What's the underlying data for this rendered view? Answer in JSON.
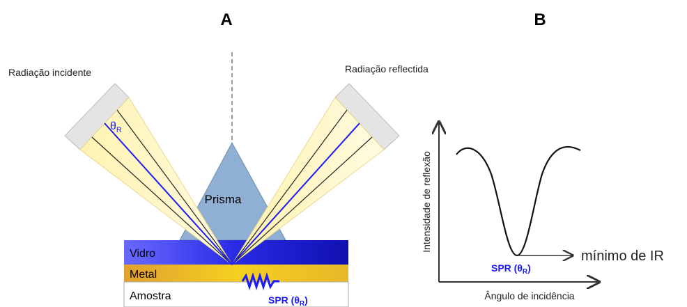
{
  "panels": [
    {
      "title": "A"
    },
    {
      "title": "B"
    }
  ],
  "panel_a": {
    "incident_label": "Radiação incidente",
    "reflected_label": "Radiação reflectida",
    "angle_label": {
      "main": "θ",
      "sub": "R"
    },
    "prism_label": "Prisma",
    "layers": [
      "Vidro",
      "Metal",
      "Amostra"
    ],
    "spr_label": {
      "main": "SPR (θ",
      "sub": "R",
      "close": ")"
    }
  },
  "panel_b": {
    "y_axis_label": "Intensidade de reflexão",
    "x_axis_label": "Ângulo de incidência",
    "spr_label": {
      "main": "SPR (θ",
      "sub": "R",
      "close": ")"
    },
    "minimum_label": "mínimo de IR"
  }
}
